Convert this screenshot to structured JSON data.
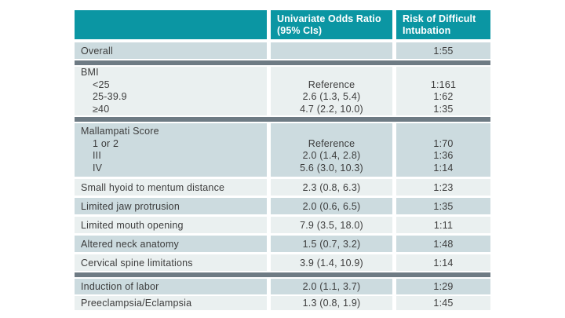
{
  "colors": {
    "header_bg": "#0b96a3",
    "header_text": "#ffffff",
    "row_light": "#eaf0f0",
    "row_medium": "#ccdbdf",
    "section_divider": "#6e7b84",
    "body_text": "#3d3d3d"
  },
  "table": {
    "header": {
      "col1": "",
      "col2_line1": "Univariate Odds Ratio",
      "col2_line2": "(95% CIs)",
      "col3_line1": "Risk of Difficult",
      "col3_line2": "Intubation"
    },
    "rows": [
      {
        "type": "single",
        "label": "Overall",
        "odds_ratio": "",
        "risk": "1:55"
      },
      {
        "type": "divider"
      },
      {
        "type": "group",
        "label": "BMI",
        "items": [
          {
            "label": "<25",
            "odds_ratio": "Reference",
            "risk": "1:161"
          },
          {
            "label": "25-39.9",
            "odds_ratio": "2.6 (1.3, 5.4)",
            "risk": "1:62"
          },
          {
            "label": "≥40",
            "odds_ratio": "4.7 (2.2, 10.0)",
            "risk": "1:35"
          }
        ]
      },
      {
        "type": "divider"
      },
      {
        "type": "group",
        "label": "Mallampati Score",
        "items": [
          {
            "label": "1 or 2",
            "odds_ratio": "Reference",
            "risk": "1:70"
          },
          {
            "label": "III",
            "odds_ratio": "2.0 (1.4, 2.8)",
            "risk": "1:36"
          },
          {
            "label": "IV",
            "odds_ratio": "5.6 (3.0, 10.3)",
            "risk": "1:14"
          }
        ]
      },
      {
        "type": "single",
        "label": "Small hyoid to mentum distance",
        "odds_ratio": "2.3 (0.8, 6.3)",
        "risk": "1:23"
      },
      {
        "type": "single",
        "label": "Limited jaw protrusion",
        "odds_ratio": "2.0 (0.6, 6.5)",
        "risk": "1:35"
      },
      {
        "type": "single",
        "label": "Limited mouth opening",
        "odds_ratio": "7.9 (3.5, 18.0)",
        "risk": "1:11"
      },
      {
        "type": "single",
        "label": "Altered neck anatomy",
        "odds_ratio": "1.5 (0.7, 3.2)",
        "risk": "1:48"
      },
      {
        "type": "single",
        "label": "Cervical spine limitations",
        "odds_ratio": "3.9 (1.4, 10.9)",
        "risk": "1:14"
      },
      {
        "type": "divider"
      },
      {
        "type": "single",
        "label": "Induction of labor",
        "odds_ratio": "2.0 (1.1, 3.7)",
        "risk": "1:29"
      },
      {
        "type": "single",
        "label": "Preeclampsia/Eclampsia",
        "odds_ratio": "1.3 (0.8, 1.9)",
        "risk": "1:45"
      }
    ]
  }
}
